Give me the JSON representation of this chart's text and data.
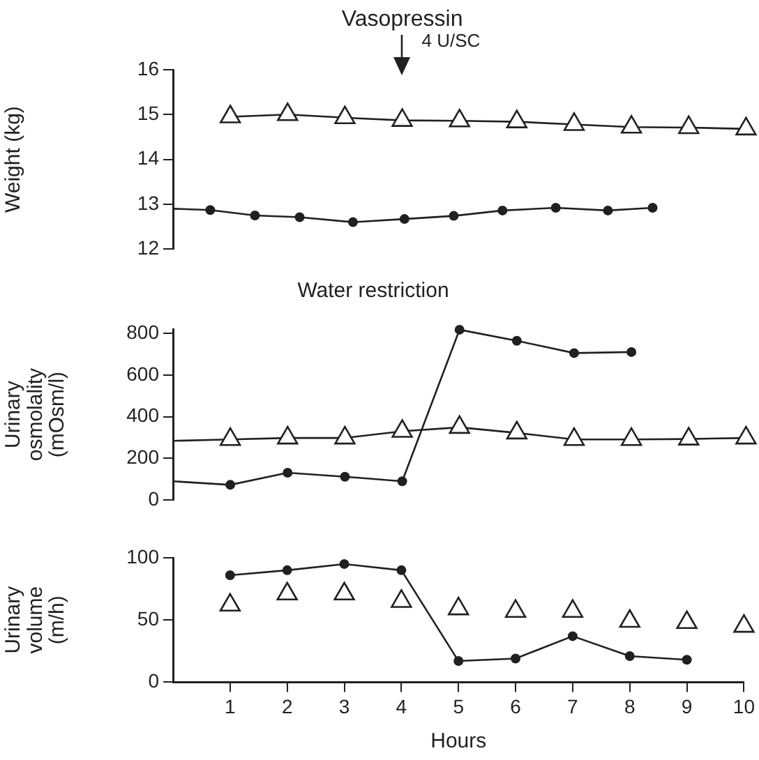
{
  "chart_data": [
    {
      "type": "line",
      "ylabel": "Weight (kg)",
      "annotations": [
        {
          "text": "Vasopressin",
          "x": 4
        },
        "4 U/SC"
      ],
      "xlim": [
        0,
        10
      ],
      "ylim": [
        12,
        16
      ],
      "yticks": [
        12,
        13,
        14,
        15,
        16
      ],
      "grid": false,
      "legend": false,
      "tick_labels": "y",
      "series": [
        {
          "type": "line",
          "color": "#231f20",
          "marker": "triangle",
          "x": [
            1,
            2,
            3,
            4,
            5,
            6,
            7,
            8,
            9,
            10
          ],
          "values": [
            14.95,
            15.0,
            14.93,
            14.87,
            14.86,
            14.84,
            14.78,
            14.72,
            14.71,
            14.68
          ]
        },
        {
          "type": "line",
          "color": "#231f20",
          "marker": "circle",
          "x": [
            0,
            0.65,
            1.43,
            2.21,
            3.14,
            4.04,
            4.9,
            5.75,
            6.68,
            7.59,
            8.37
          ],
          "values": [
            12.9,
            12.87,
            12.75,
            12.71,
            12.6,
            12.67,
            12.74,
            12.86,
            12.92,
            12.86,
            12.92
          ]
        }
      ]
    },
    {
      "type": "line",
      "title": "Water restriction",
      "ylabel": "Urinary osmolality (mOsm/l)",
      "xlim": [
        0,
        10
      ],
      "ylim": [
        0,
        820
      ],
      "yticks": [
        0,
        200,
        400,
        600,
        800
      ],
      "grid": false,
      "legend": false,
      "tick_labels": "y",
      "series": [
        {
          "type": "line",
          "color": "#231f20",
          "marker": "triangle",
          "x": [
            0,
            1,
            2,
            3,
            4,
            5,
            6,
            7,
            8,
            9,
            10
          ],
          "values": [
            284,
            291,
            298,
            298,
            330,
            349,
            322,
            291,
            291,
            293,
            298
          ]
        },
        {
          "type": "line",
          "color": "#231f20",
          "marker": "circle",
          "x": [
            0,
            1,
            2,
            3,
            4,
            5,
            6,
            7,
            8
          ],
          "values": [
            90,
            73,
            131,
            112,
            90,
            817,
            764,
            705,
            710
          ]
        }
      ]
    },
    {
      "type": "line",
      "ylabel": "Urinary volume (m/h)",
      "xlabel": "Hours",
      "xlim": [
        0,
        10
      ],
      "xticks": [
        1,
        2,
        3,
        4,
        5,
        6,
        7,
        8,
        9,
        10
      ],
      "ylim": [
        0,
        100
      ],
      "yticks": [
        0,
        50,
        100
      ],
      "grid": false,
      "legend": false,
      "series": [
        {
          "type": "scatter",
          "color": "#231f20",
          "marker": "triangle",
          "x": [
            1,
            2,
            3,
            4,
            5,
            6,
            7,
            8,
            9,
            10
          ],
          "values": [
            62,
            71,
            71,
            65,
            59,
            57,
            57,
            49,
            48,
            45
          ]
        },
        {
          "type": "line",
          "color": "#231f20",
          "marker": "circle",
          "x": [
            1,
            2,
            3,
            4,
            5,
            6,
            7,
            8,
            9
          ],
          "values": [
            86,
            90,
            95,
            90,
            17,
            19,
            37,
            21,
            18
          ]
        }
      ]
    }
  ]
}
